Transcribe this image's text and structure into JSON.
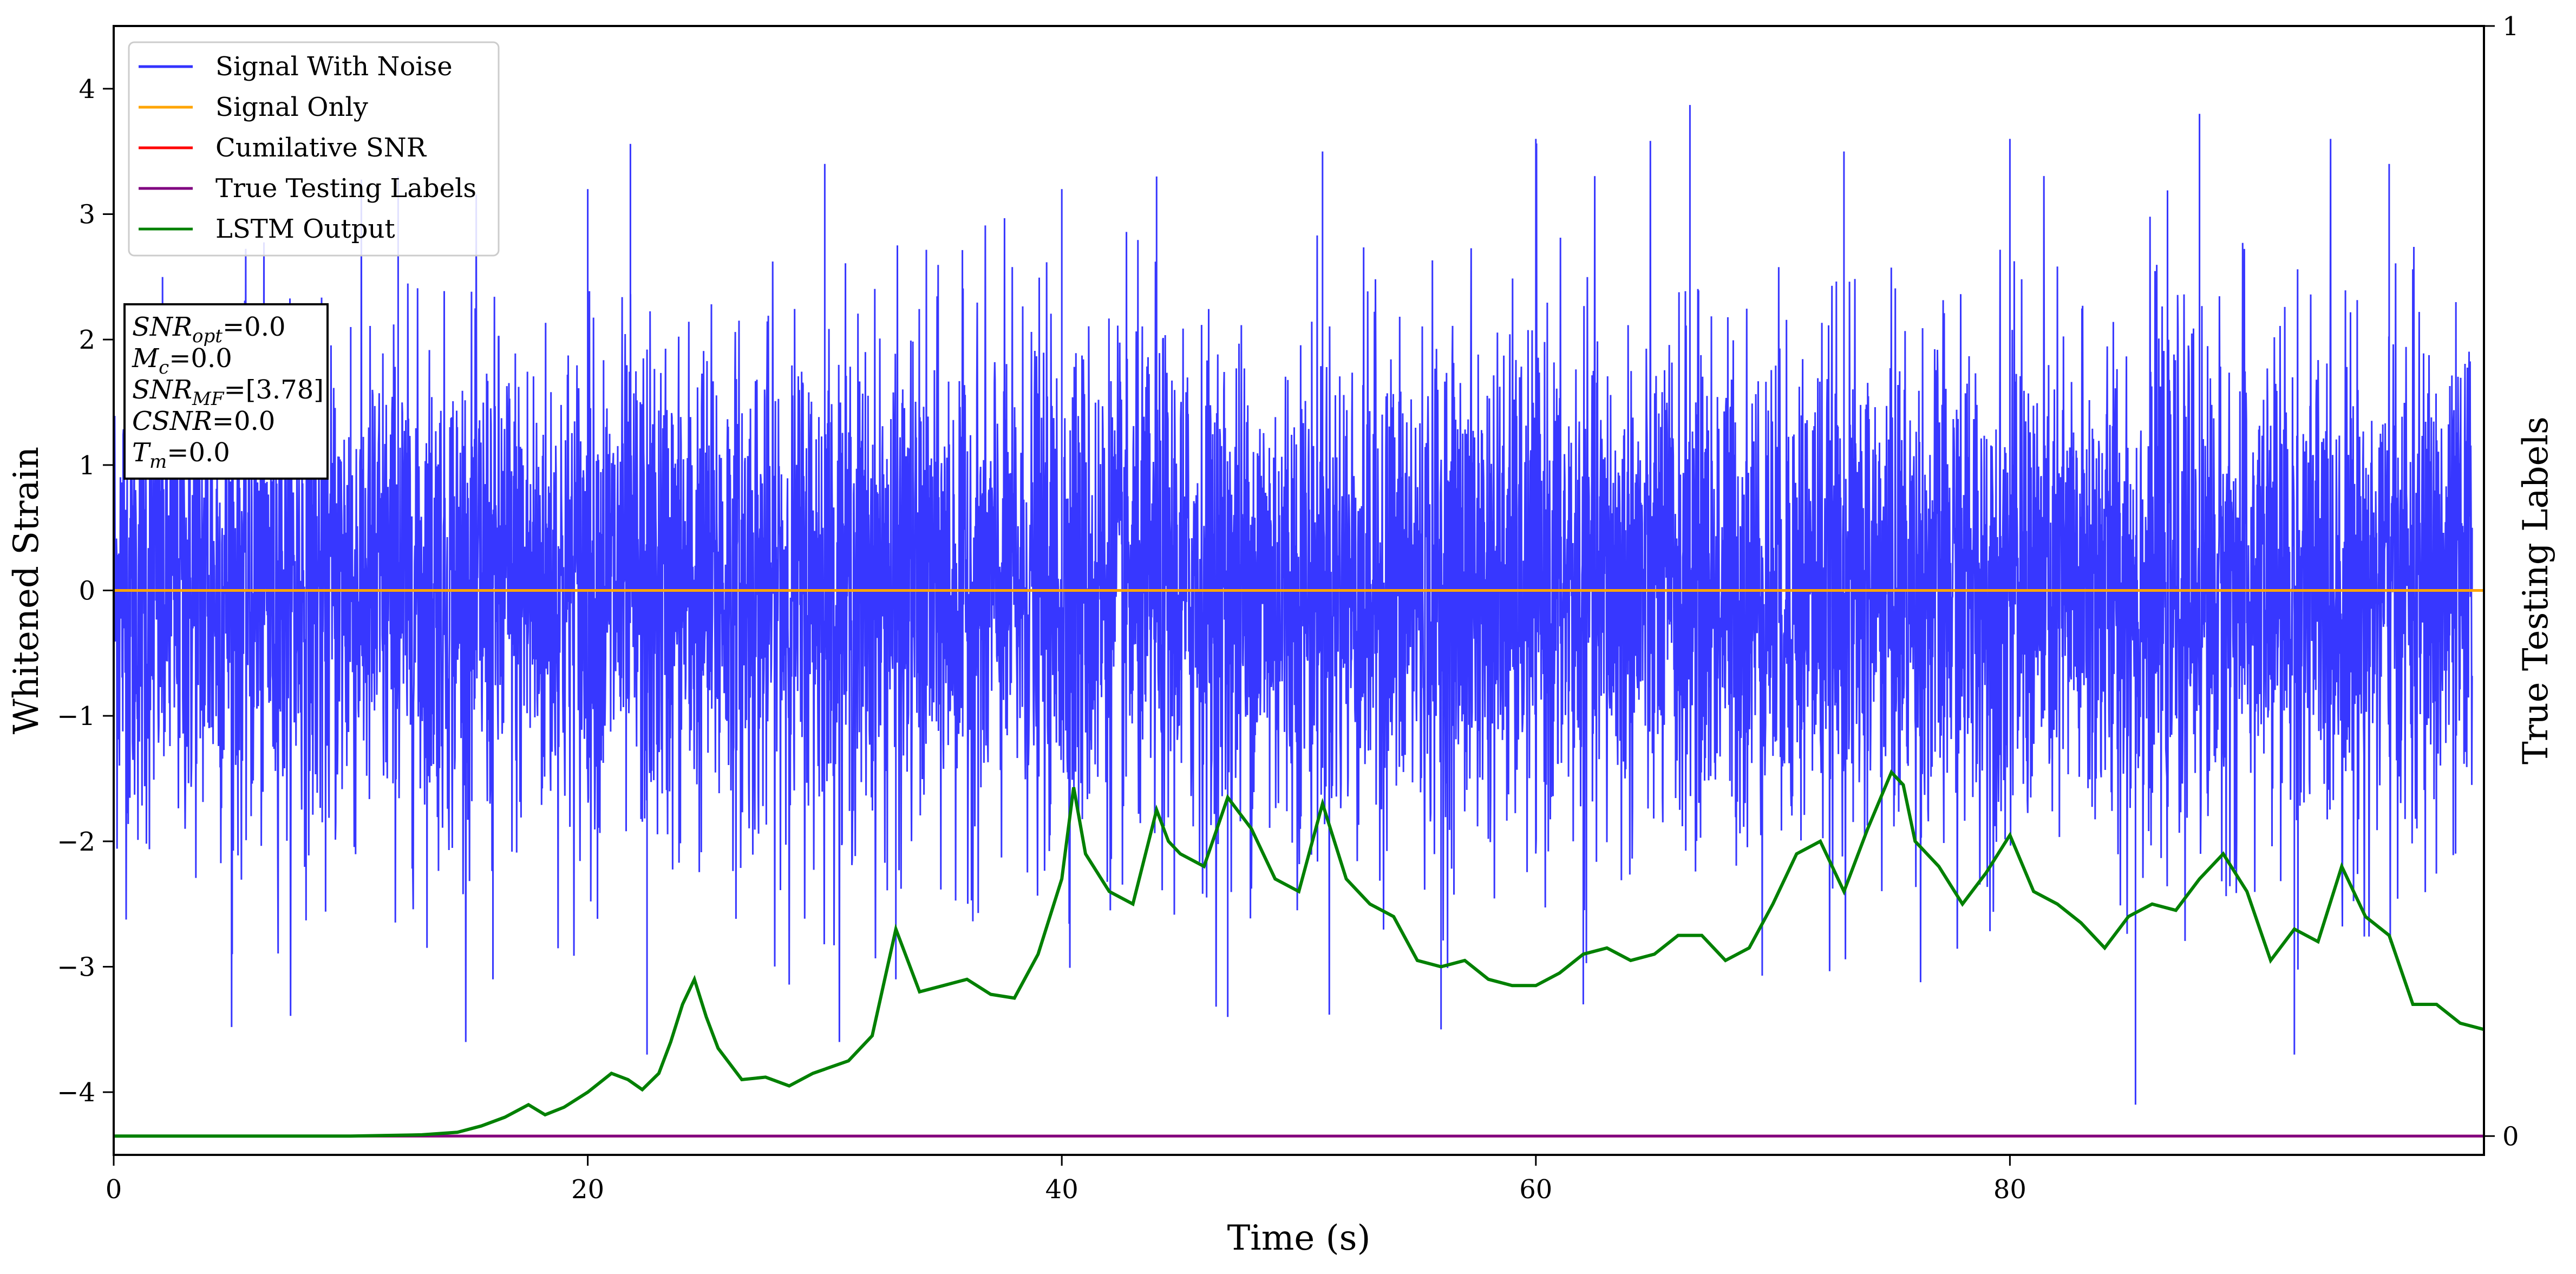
{
  "chart_data": {
    "type": "line",
    "xlabel": "Time (s)",
    "ylabel": "Whitened Strain",
    "ylabel_right": "True Testing Labels",
    "xlim": [
      0,
      100
    ],
    "ylim": [
      -4.5,
      4.5
    ],
    "ylim_right": [
      0,
      1
    ],
    "x_ticks": [
      0,
      20,
      40,
      60,
      80
    ],
    "y_ticks": [
      -4,
      -3,
      -2,
      -1,
      0,
      1,
      2,
      3,
      4
    ],
    "y_ticks_right": [
      0,
      1
    ],
    "grid": false,
    "legend_position": "top-left",
    "series": [
      {
        "name": "Signal With Noise",
        "color": "#3333ff",
        "style": "dense noise spanning roughly -4.1 to 4.0 around 0",
        "samples": [
          [
            0.0,
            0.6
          ],
          [
            5.0,
            -2.9
          ],
          [
            10.0,
            2.1
          ],
          [
            12.0,
            3.3
          ],
          [
            16.0,
            -3.1
          ],
          [
            20.0,
            3.2
          ],
          [
            21.8,
            3.56
          ],
          [
            22.5,
            -3.7
          ],
          [
            30.0,
            3.4
          ],
          [
            33.0,
            -3.1
          ],
          [
            40.0,
            3.2
          ],
          [
            44.0,
            3.3
          ],
          [
            47.0,
            -3.4
          ],
          [
            51.0,
            3.5
          ],
          [
            56.0,
            -3.5
          ],
          [
            60.0,
            3.6
          ],
          [
            62.0,
            -3.3
          ],
          [
            66.5,
            3.87
          ],
          [
            73.0,
            3.5
          ],
          [
            80.0,
            3.6
          ],
          [
            85.3,
            -4.1
          ],
          [
            88.0,
            3.8
          ],
          [
            92.0,
            -3.7
          ],
          [
            96.0,
            3.4
          ],
          [
            99.5,
            0.5
          ]
        ]
      },
      {
        "name": "Signal Only",
        "color": "#ffa500",
        "x": [
          0,
          100
        ],
        "y": [
          0,
          0
        ]
      },
      {
        "name": "Cumilative SNR",
        "color": "#ff0000",
        "x": [
          0,
          100
        ],
        "y": [
          -4.35,
          -4.35
        ]
      },
      {
        "name": "True Testing Labels",
        "color": "#800080",
        "x": [
          0,
          100
        ],
        "y": [
          -4.35,
          -4.35
        ]
      },
      {
        "name": "LSTM Output",
        "color": "#008000",
        "x": [
          0,
          5,
          10,
          13,
          14.5,
          15.5,
          16.5,
          17.5,
          18.2,
          19,
          20,
          21,
          21.7,
          22.3,
          23,
          23.5,
          24,
          24.5,
          25,
          25.5,
          26.5,
          27.5,
          28.5,
          29.5,
          31,
          32,
          33,
          34,
          35,
          36,
          37,
          38,
          39,
          40,
          40.5,
          41,
          42,
          43,
          44,
          44.5,
          45,
          46,
          47,
          48,
          49,
          50,
          51,
          52,
          53,
          54,
          55,
          56,
          57,
          58,
          59,
          60,
          61,
          62,
          63,
          64,
          65,
          66,
          67,
          68,
          69,
          70,
          71,
          72,
          73,
          74,
          75,
          75.5,
          76,
          77,
          78,
          79,
          80,
          81,
          82,
          83,
          84,
          85,
          86,
          87,
          88,
          89,
          90,
          91,
          92,
          93,
          94,
          95,
          96,
          97,
          98,
          99,
          100
        ],
        "y": [
          -4.35,
          -4.35,
          -4.35,
          -4.34,
          -4.32,
          -4.27,
          -4.2,
          -4.1,
          -4.18,
          -4.12,
          -4.0,
          -3.85,
          -3.9,
          -3.98,
          -3.85,
          -3.6,
          -3.3,
          -3.1,
          -3.4,
          -3.65,
          -3.9,
          -3.88,
          -3.95,
          -3.85,
          -3.75,
          -3.55,
          -2.7,
          -3.2,
          -3.15,
          -3.1,
          -3.22,
          -3.25,
          -2.9,
          -2.3,
          -1.57,
          -2.1,
          -2.4,
          -2.5,
          -1.75,
          -2.0,
          -2.1,
          -2.2,
          -1.65,
          -1.9,
          -2.3,
          -2.4,
          -1.7,
          -2.3,
          -2.5,
          -2.6,
          -2.95,
          -3.0,
          -2.95,
          -3.1,
          -3.15,
          -3.15,
          -3.05,
          -2.9,
          -2.85,
          -2.95,
          -2.9,
          -2.75,
          -2.75,
          -2.95,
          -2.85,
          -2.5,
          -2.1,
          -2.0,
          -2.4,
          -1.9,
          -1.45,
          -1.55,
          -2.0,
          -2.2,
          -2.5,
          -2.25,
          -1.95,
          -2.4,
          -2.5,
          -2.65,
          -2.85,
          -2.6,
          -2.5,
          -2.55,
          -2.3,
          -2.1,
          -2.4,
          -2.95,
          -2.7,
          -2.8,
          -2.2,
          -2.6,
          -2.75,
          -3.3,
          -3.3,
          -3.45,
          -3.5
        ]
      }
    ],
    "annotation": {
      "lines": [
        {
          "label": "SNR",
          "sub": "opt",
          "value": "=0.0"
        },
        {
          "label": "M",
          "sub": "c",
          "value": "=0.0"
        },
        {
          "label": "SNR",
          "sub": "MF",
          "value": "=[3.78]"
        },
        {
          "label": "CSNR",
          "sub": "",
          "value": "=0.0"
        },
        {
          "label": "T",
          "sub": "m",
          "value": "=0.0"
        }
      ]
    }
  }
}
